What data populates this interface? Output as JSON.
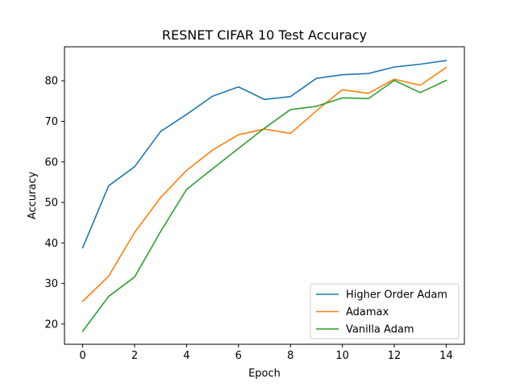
{
  "chart_data": {
    "type": "line",
    "title": "RESNET CIFAR 10 Test Accuracy",
    "xlabel": "Epoch",
    "ylabel": "Accuracy",
    "xlim": [
      -0.7,
      14.7
    ],
    "ylim": [
      15.0,
      88.4
    ],
    "xticks": [
      0,
      2,
      4,
      6,
      8,
      10,
      12,
      14
    ],
    "yticks": [
      20,
      30,
      40,
      50,
      60,
      70,
      80
    ],
    "grid": false,
    "legend_position": "lower-right",
    "x": [
      0,
      1,
      2,
      3,
      4,
      5,
      6,
      7,
      8,
      9,
      10,
      11,
      12,
      13,
      14
    ],
    "series": [
      {
        "name": "Higher Order Adam",
        "color": "#1f77b4",
        "values": [
          38.8,
          54.1,
          58.8,
          67.5,
          71.7,
          76.2,
          78.5,
          75.4,
          76.1,
          80.6,
          81.5,
          81.8,
          83.4,
          84.1,
          85.0
        ]
      },
      {
        "name": "Adamax",
        "color": "#ff7f0e",
        "values": [
          25.6,
          31.8,
          42.6,
          51.2,
          57.9,
          62.9,
          66.7,
          68.1,
          67.0,
          72.6,
          77.8,
          76.9,
          80.4,
          78.9,
          83.3
        ]
      },
      {
        "name": "Vanilla Adam",
        "color": "#2ca02c",
        "values": [
          18.2,
          26.8,
          31.6,
          42.8,
          53.2,
          58.3,
          63.3,
          68.3,
          72.9,
          73.7,
          75.8,
          75.6,
          80.1,
          77.1,
          80.1
        ]
      }
    ]
  }
}
